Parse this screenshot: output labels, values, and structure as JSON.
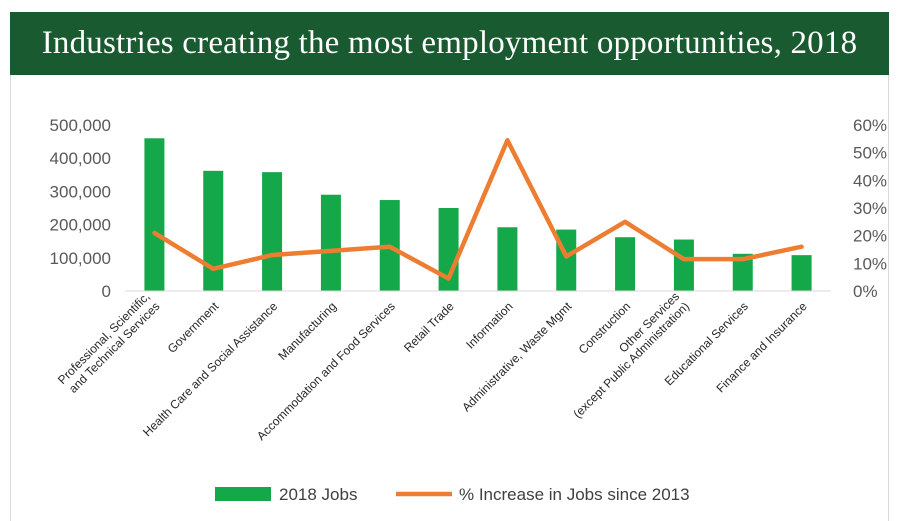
{
  "banner": {
    "title": "Industries creating the most employment opportunities, 2018",
    "color": "#1a5a31"
  },
  "chart_data": {
    "type": "bar",
    "title": "Industries creating the most employment opportunities, 2018",
    "categories": [
      [
        "Professional, Scientific,",
        "and Technical Services"
      ],
      [
        "Government"
      ],
      [
        "Health Care and Social Assistance"
      ],
      [
        "Manufacturing"
      ],
      [
        "Accommodation and Food Services"
      ],
      [
        "Retail Trade"
      ],
      [
        "Information"
      ],
      [
        "Administrative, Waste Mgmt"
      ],
      [
        "Construction"
      ],
      [
        "Other Services",
        "(except Public Administration)"
      ],
      [
        "Educational Services"
      ],
      [
        "Finance and Insurance"
      ]
    ],
    "series": [
      {
        "name": "2018 Jobs",
        "type": "bar",
        "axis": "left",
        "color": "#14a84a",
        "values": [
          460000,
          362000,
          358000,
          290000,
          274000,
          250000,
          192000,
          185000,
          162000,
          155000,
          112000,
          108000
        ]
      },
      {
        "name": "% Increase in Jobs since 2013",
        "type": "line",
        "axis": "right",
        "color": "#ed7d31",
        "values": [
          21,
          8,
          13,
          14.5,
          16,
          4.5,
          54.5,
          12.5,
          25,
          11.5,
          11.5,
          16
        ]
      }
    ],
    "y_left": {
      "min": 0,
      "max": 500000,
      "ticks": [
        "0",
        "100,000",
        "200,000",
        "300,000",
        "400,000",
        "500,000"
      ]
    },
    "y_right": {
      "min": 0,
      "max": 60,
      "ticks": [
        "0%",
        "10%",
        "20%",
        "30%",
        "40%",
        "50%",
        "60%"
      ]
    },
    "grid": false,
    "legend": "bottom"
  }
}
